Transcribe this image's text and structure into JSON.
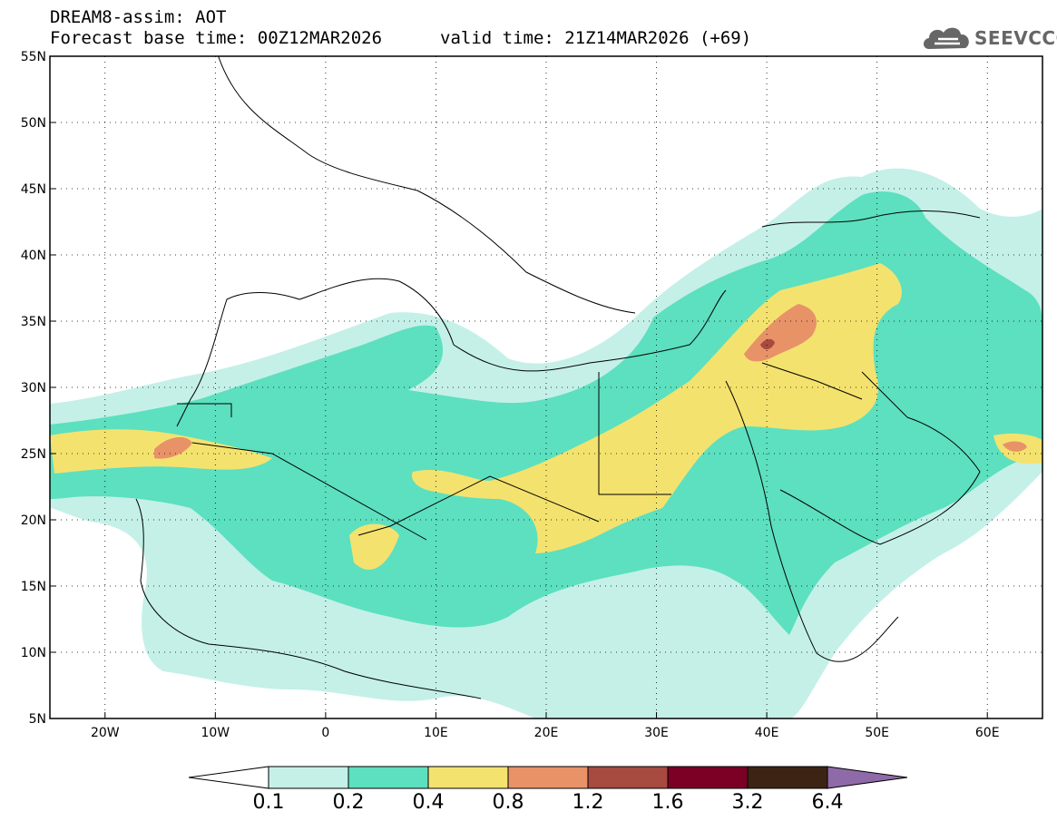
{
  "header": {
    "line1": "DREAM8-assim: AOT",
    "base_time": "Forecast base time: 00Z12MAR2026",
    "valid_time": "valid time: 21Z14MAR2026 (+69)"
  },
  "logo": {
    "text": "SEEVCCC",
    "icon": "cloud-icon"
  },
  "map": {
    "lon_range": [
      -25,
      65
    ],
    "lat_range": [
      5,
      55
    ],
    "lat_ticks": [
      "55N",
      "50N",
      "45N",
      "40N",
      "35N",
      "30N",
      "25N",
      "20N",
      "15N",
      "10N",
      "5N"
    ],
    "lon_ticks": [
      "20W",
      "10W",
      "0",
      "10E",
      "20E",
      "30E",
      "40E",
      "50E",
      "60E"
    ],
    "grid": "dotted"
  },
  "colorbar": {
    "labels": [
      "0.1",
      "0.2",
      "0.4",
      "0.8",
      "1.2",
      "1.6",
      "3.2",
      "6.4"
    ],
    "colors": [
      "#ffffff",
      "#c4f0e8",
      "#5ce0bf",
      "#f4e26f",
      "#e89268",
      "#a74a3f",
      "#7a0026",
      "#3c2415",
      "#8e6aa8"
    ]
  }
}
